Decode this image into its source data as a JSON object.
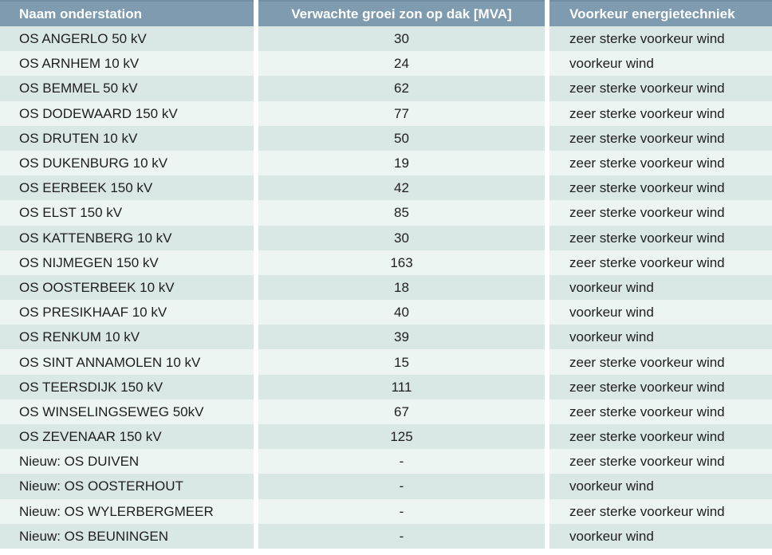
{
  "table": {
    "columns": [
      {
        "label": "Naam onderstation",
        "align": "left"
      },
      {
        "label": "Verwachte groei zon op dak [MVA]",
        "align": "center"
      },
      {
        "label": "Voorkeur energietechniek",
        "align": "left"
      }
    ],
    "rows": [
      [
        "OS ANGERLO 50 kV",
        "30",
        "zeer sterke voorkeur wind"
      ],
      [
        "OS ARNHEM 10 kV",
        "24",
        "voorkeur wind"
      ],
      [
        "OS BEMMEL 50 kV",
        "62",
        "zeer sterke voorkeur wind"
      ],
      [
        "OS DODEWAARD 150 kV",
        "77",
        "zeer sterke voorkeur wind"
      ],
      [
        "OS DRUTEN 10 kV",
        "50",
        "zeer sterke voorkeur wind"
      ],
      [
        "OS DUKENBURG 10 kV",
        "19",
        "zeer sterke voorkeur wind"
      ],
      [
        "OS EERBEEK 150 kV",
        "42",
        "zeer sterke voorkeur wind"
      ],
      [
        "OS ELST 150 kV",
        "85",
        "zeer sterke voorkeur wind"
      ],
      [
        "OS KATTENBERG 10 kV",
        "30",
        "zeer sterke voorkeur wind"
      ],
      [
        "OS NIJMEGEN 150 kV",
        "163",
        "zeer sterke voorkeur wind"
      ],
      [
        "OS OOSTERBEEK 10 kV",
        "18",
        "voorkeur wind"
      ],
      [
        "OS PRESIKHAAF 10 kV",
        "40",
        "voorkeur wind"
      ],
      [
        "OS RENKUM 10 kV",
        "39",
        "voorkeur wind"
      ],
      [
        "OS SINT ANNAMOLEN 10 kV",
        "15",
        "zeer sterke voorkeur wind"
      ],
      [
        "OS TEERSDIJK 150 kV",
        "111",
        "zeer sterke voorkeur wind"
      ],
      [
        "OS WINSELINGSEWEG 50kV",
        "67",
        "zeer sterke voorkeur wind"
      ],
      [
        "OS ZEVENAAR 150 kV",
        "125",
        "zeer sterke voorkeur wind"
      ],
      [
        "Nieuw: OS DUIVEN",
        "-",
        "zeer sterke voorkeur wind"
      ],
      [
        "Nieuw: OS OOSTERHOUT",
        "-",
        "voorkeur wind"
      ],
      [
        "Nieuw: OS WYLERBERGMEER",
        "-",
        "zeer sterke voorkeur wind"
      ],
      [
        "Nieuw: OS BEUNINGEN",
        "-",
        "voorkeur wind"
      ]
    ],
    "colors": {
      "header_bg": "#7E9BB0",
      "header_border": "#6F8EA3",
      "header_text": "#FFFFFF",
      "row_odd_bg": "#D9E8E5",
      "row_even_bg": "#EDF5F2",
      "body_text": "#1E1E1E",
      "separator": "#FFFFFF"
    }
  }
}
